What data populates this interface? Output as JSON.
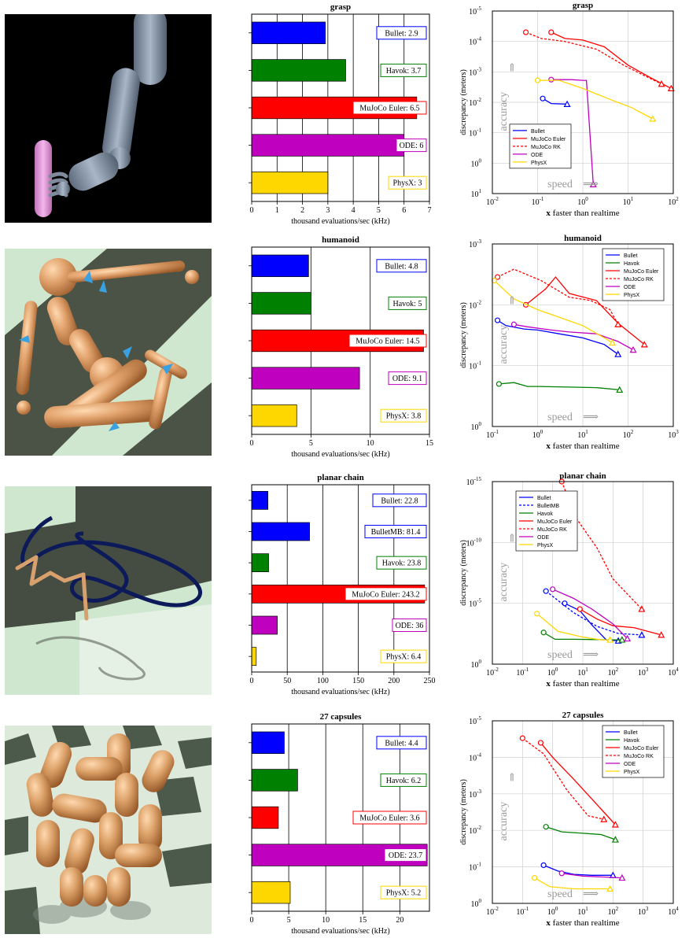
{
  "colors": {
    "Bullet": "#0000ff",
    "BulletMB": "#0000ff",
    "Havok": "#008000",
    "MuJoCo Euler": "#ff0000",
    "MuJoCo RK": "#ff0000",
    "ODE": "#bf00bf",
    "PhysX": "#ffd700"
  },
  "bar_axis": {
    "xlabel": "thousand evaluations/sec (kHz)"
  },
  "scatter_axis": {
    "ylabel": "discrepancy (meters)",
    "xlabel_bold": "x",
    "xlabel_rest": " faster than realtime",
    "accuracy_label": "accuracy",
    "speed_label": "speed"
  },
  "chart_data": [
    {
      "type": "bar",
      "title": "grasp",
      "xlim": [
        0,
        7
      ],
      "xticks": [
        0,
        1,
        2,
        3,
        4,
        5,
        6,
        7
      ],
      "xlabel": "thousand evaluations/sec (kHz)",
      "bars": [
        {
          "name": "Bullet",
          "value": 2.9,
          "label": "Bullet: 2.9"
        },
        {
          "name": "Havok",
          "value": 3.7,
          "label": "Havok: 3.7"
        },
        {
          "name": "MuJoCo Euler",
          "value": 6.5,
          "label": "MuJoCo Euler: 6.5"
        },
        {
          "name": "ODE",
          "value": 6,
          "label": "ODE: 6"
        },
        {
          "name": "PhysX",
          "value": 3,
          "label": "PhysX: 3"
        }
      ]
    },
    {
      "type": "bar",
      "title": "humanoid",
      "xlim": [
        0,
        15
      ],
      "xticks": [
        0,
        5,
        10,
        15
      ],
      "xlabel": "thousand evaluations/sec (kHz)",
      "bars": [
        {
          "name": "Bullet",
          "value": 4.8,
          "label": "Bullet: 4.8"
        },
        {
          "name": "Havok",
          "value": 5,
          "label": "Havok: 5"
        },
        {
          "name": "MuJoCo Euler",
          "value": 14.5,
          "label": "MuJoCo Euler: 14.5"
        },
        {
          "name": "ODE",
          "value": 9.1,
          "label": "ODE: 9.1"
        },
        {
          "name": "PhysX",
          "value": 3.8,
          "label": "PhysX: 3.8"
        }
      ]
    },
    {
      "type": "bar",
      "title": "planar chain",
      "xlim": [
        0,
        250
      ],
      "xticks": [
        0,
        50,
        100,
        150,
        200,
        250
      ],
      "xlabel": "thousand evaluations/sec (kHz)",
      "bars": [
        {
          "name": "Bullet",
          "value": 22.8,
          "label": "Bullet: 22.8"
        },
        {
          "name": "BulletMB",
          "value": 81.4,
          "label": "BulletMB: 81.4"
        },
        {
          "name": "Havok",
          "value": 23.8,
          "label": "Havok: 23.8"
        },
        {
          "name": "MuJoCo Euler",
          "value": 243.2,
          "label": "MuJoCo Euler: 243.2"
        },
        {
          "name": "ODE",
          "value": 36,
          "label": "ODE: 36"
        },
        {
          "name": "PhysX",
          "value": 6.4,
          "label": "PhysX: 6.4"
        }
      ]
    },
    {
      "type": "bar",
      "title": "27 capsules",
      "xlim": [
        0,
        24
      ],
      "xticks": [
        0,
        5,
        10,
        15,
        20
      ],
      "xlabel": "thousand evaluations/sec (kHz)",
      "bars": [
        {
          "name": "Bullet",
          "value": 4.4,
          "label": "Bullet: 4.4"
        },
        {
          "name": "Havok",
          "value": 6.2,
          "label": "Havok: 6.2"
        },
        {
          "name": "MuJoCo Euler",
          "value": 3.6,
          "label": "MuJoCo Euler: 3.6"
        },
        {
          "name": "ODE",
          "value": 23.7,
          "label": "ODE: 23.7"
        },
        {
          "name": "PhysX",
          "value": 5.2,
          "label": "PhysX: 5.2"
        }
      ]
    },
    {
      "type": "line",
      "title": "grasp",
      "xscale": "log",
      "yscale": "log",
      "yinverted": true,
      "xlim_exp": [
        -2,
        2
      ],
      "ylim_exp": [
        -5,
        1
      ],
      "legend_position": "bottom-left",
      "series": [
        {
          "name": "Bullet",
          "dashed": false,
          "points": [
            [
              0.13,
              0.0075
            ],
            [
              0.2,
              0.011
            ],
            [
              0.45,
              0.0115
            ]
          ]
        },
        {
          "name": "MuJoCo Euler",
          "dashed": false,
          "points": [
            [
              0.2,
              5e-05
            ],
            [
              0.4,
              8e-05
            ],
            [
              1.0,
              9e-05
            ],
            [
              3,
              0.00015
            ],
            [
              10,
              0.0006
            ],
            [
              30,
              0.0015
            ],
            [
              90,
              0.0035
            ]
          ]
        },
        {
          "name": "MuJoCo RK",
          "dashed": true,
          "points": [
            [
              0.055,
              5e-05
            ],
            [
              0.12,
              8e-05
            ],
            [
              0.4,
              0.0001
            ],
            [
              2,
              0.00018
            ],
            [
              8,
              0.0006
            ],
            [
              20,
              0.0012
            ],
            [
              55,
              0.0025
            ]
          ]
        },
        {
          "name": "ODE",
          "dashed": false,
          "points": [
            [
              0.2,
              0.0018
            ],
            [
              0.55,
              0.0018
            ],
            [
              1.0,
              0.0019
            ],
            [
              1.2,
              0.0019
            ],
            [
              1.7,
              5
            ]
          ]
        },
        {
          "name": "PhysX",
          "dashed": false,
          "points": [
            [
              0.1,
              0.0019
            ],
            [
              0.3,
              0.0019
            ],
            [
              1.0,
              0.0035
            ],
            [
              4,
              0.008
            ],
            [
              12,
              0.015
            ],
            [
              35,
              0.035
            ]
          ]
        }
      ]
    },
    {
      "type": "line",
      "title": "humanoid",
      "xscale": "log",
      "yscale": "log",
      "yinverted": true,
      "xlim_exp": [
        -1,
        3
      ],
      "ylim_exp": [
        -3,
        0
      ],
      "legend_position": "top-right",
      "series": [
        {
          "name": "Bullet",
          "dashed": false,
          "points": [
            [
              0.13,
              0.018
            ],
            [
              0.2,
              0.022
            ],
            [
              0.5,
              0.025
            ],
            [
              1,
              0.026
            ],
            [
              3,
              0.03
            ],
            [
              10,
              0.035
            ],
            [
              30,
              0.045
            ],
            [
              60,
              0.065
            ]
          ]
        },
        {
          "name": "Havok",
          "dashed": false,
          "points": [
            [
              0.14,
              0.2
            ],
            [
              0.3,
              0.19
            ],
            [
              0.6,
              0.22
            ],
            [
              1,
              0.22
            ],
            [
              5,
              0.225
            ],
            [
              20,
              0.23
            ],
            [
              65,
              0.25
            ]
          ]
        },
        {
          "name": "MuJoCo Euler",
          "dashed": false,
          "points": [
            [
              0.55,
              0.01
            ],
            [
              1.5,
              0.0055
            ],
            [
              2.5,
              0.0035
            ],
            [
              5,
              0.0065
            ],
            [
              20,
              0.0085
            ],
            [
              60,
              0.02
            ],
            [
              230,
              0.045
            ]
          ]
        },
        {
          "name": "MuJoCo RK",
          "dashed": true,
          "points": [
            [
              0.13,
              0.0035
            ],
            [
              0.3,
              0.0026
            ],
            [
              1.2,
              0.004
            ],
            [
              5,
              0.0075
            ],
            [
              15,
              0.0085
            ],
            [
              40,
              0.012
            ],
            [
              60,
              0.021
            ]
          ]
        },
        {
          "name": "ODE",
          "dashed": false,
          "points": [
            [
              0.3,
              0.021
            ],
            [
              0.6,
              0.023
            ],
            [
              2,
              0.026
            ],
            [
              5,
              0.028
            ],
            [
              20,
              0.03
            ],
            [
              60,
              0.04
            ],
            [
              130,
              0.055
            ]
          ]
        },
        {
          "name": "PhysX",
          "dashed": false,
          "points": [
            [
              0.11,
              0.004
            ],
            [
              0.3,
              0.008
            ],
            [
              1,
              0.012
            ],
            [
              3,
              0.016
            ],
            [
              10,
              0.022
            ],
            [
              30,
              0.035
            ],
            [
              45,
              0.042
            ]
          ]
        }
      ]
    },
    {
      "type": "line",
      "title": "planar chain",
      "xscale": "log",
      "yscale": "log",
      "yinverted": true,
      "xlim_exp": [
        -2,
        4
      ],
      "ylim_exp": [
        -15,
        0
      ],
      "yticks_exp": [
        -15,
        -10,
        -5,
        0
      ],
      "legend_position": "top-left",
      "series": [
        {
          "name": "Bullet",
          "dashed": false,
          "points": [
            [
              2.5,
              1e-05
            ],
            [
              8,
              4e-05
            ],
            [
              20,
              0.0006
            ],
            [
              60,
              0.01
            ],
            [
              150,
              0.012
            ]
          ]
        },
        {
          "name": "BulletMB",
          "dashed": true,
          "points": [
            [
              0.6,
              1e-06
            ],
            [
              5,
              6e-05
            ],
            [
              30,
              0.0008
            ],
            [
              150,
              0.003
            ],
            [
              900,
              0.004
            ]
          ]
        },
        {
          "name": "Havok",
          "dashed": false,
          "points": [
            [
              0.5,
              0.0025
            ],
            [
              1.2,
              0.009
            ],
            [
              5,
              0.009
            ],
            [
              20,
              0.0095
            ],
            [
              100,
              0.01
            ],
            [
              200,
              0.01
            ]
          ]
        },
        {
          "name": "MuJoCo Euler",
          "dashed": false,
          "points": [
            [
              8,
              3e-05
            ],
            [
              30,
              0.0002
            ],
            [
              100,
              0.0007
            ],
            [
              500,
              0.001
            ],
            [
              4000,
              0.004
            ]
          ]
        },
        {
          "name": "MuJoCo RK",
          "dashed": true,
          "points": [
            [
              2,
              3e-16
            ],
            [
              6,
              1e-12
            ],
            [
              30,
              3e-10
            ],
            [
              100,
              1e-07
            ],
            [
              900,
              3e-05
            ]
          ]
        },
        {
          "name": "ODE",
          "dashed": false,
          "points": [
            [
              1,
              7e-07
            ],
            [
              5,
              4e-06
            ],
            [
              20,
              3e-05
            ],
            [
              100,
              0.0005
            ],
            [
              300,
              0.008
            ]
          ]
        },
        {
          "name": "PhysX",
          "dashed": false,
          "points": [
            [
              0.3,
              7e-05
            ],
            [
              1.5,
              0.002
            ],
            [
              10,
              0.006
            ],
            [
              40,
              0.01
            ],
            [
              80,
              0.01
            ]
          ]
        }
      ]
    },
    {
      "type": "line",
      "title": "27 capsules",
      "xscale": "log",
      "yscale": "log",
      "yinverted": true,
      "xlim_exp": [
        -2,
        4
      ],
      "ylim_exp": [
        -5,
        0
      ],
      "legend_position": "top-right",
      "series": [
        {
          "name": "Bullet",
          "dashed": false,
          "points": [
            [
              0.5,
              0.09
            ],
            [
              1.5,
              0.13
            ],
            [
              5,
              0.16
            ],
            [
              20,
              0.17
            ],
            [
              100,
              0.17
            ]
          ]
        },
        {
          "name": "Havok",
          "dashed": false,
          "points": [
            [
              0.6,
              0.008
            ],
            [
              2,
              0.011
            ],
            [
              10,
              0.012
            ],
            [
              40,
              0.013
            ],
            [
              120,
              0.018
            ]
          ]
        },
        {
          "name": "MuJoCo Euler",
          "dashed": false,
          "points": [
            [
              0.4,
              4e-05
            ],
            [
              1,
              0.0001
            ],
            [
              5,
              0.0004
            ],
            [
              30,
              0.002
            ],
            [
              120,
              0.007
            ]
          ]
        },
        {
          "name": "MuJoCo RK",
          "dashed": true,
          "points": [
            [
              0.1,
              3e-05
            ],
            [
              0.5,
              8e-05
            ],
            [
              3,
              0.0008
            ],
            [
              15,
              0.004
            ],
            [
              50,
              0.005
            ]
          ]
        },
        {
          "name": "ODE",
          "dashed": false,
          "points": [
            [
              2,
              0.15
            ],
            [
              10,
              0.18
            ],
            [
              50,
              0.19
            ],
            [
              200,
              0.2
            ]
          ]
        },
        {
          "name": "PhysX",
          "dashed": false,
          "points": [
            [
              0.25,
              0.2
            ],
            [
              0.8,
              0.35
            ],
            [
              5,
              0.4
            ],
            [
              30,
              0.4
            ],
            [
              80,
              0.4
            ]
          ]
        }
      ]
    }
  ]
}
